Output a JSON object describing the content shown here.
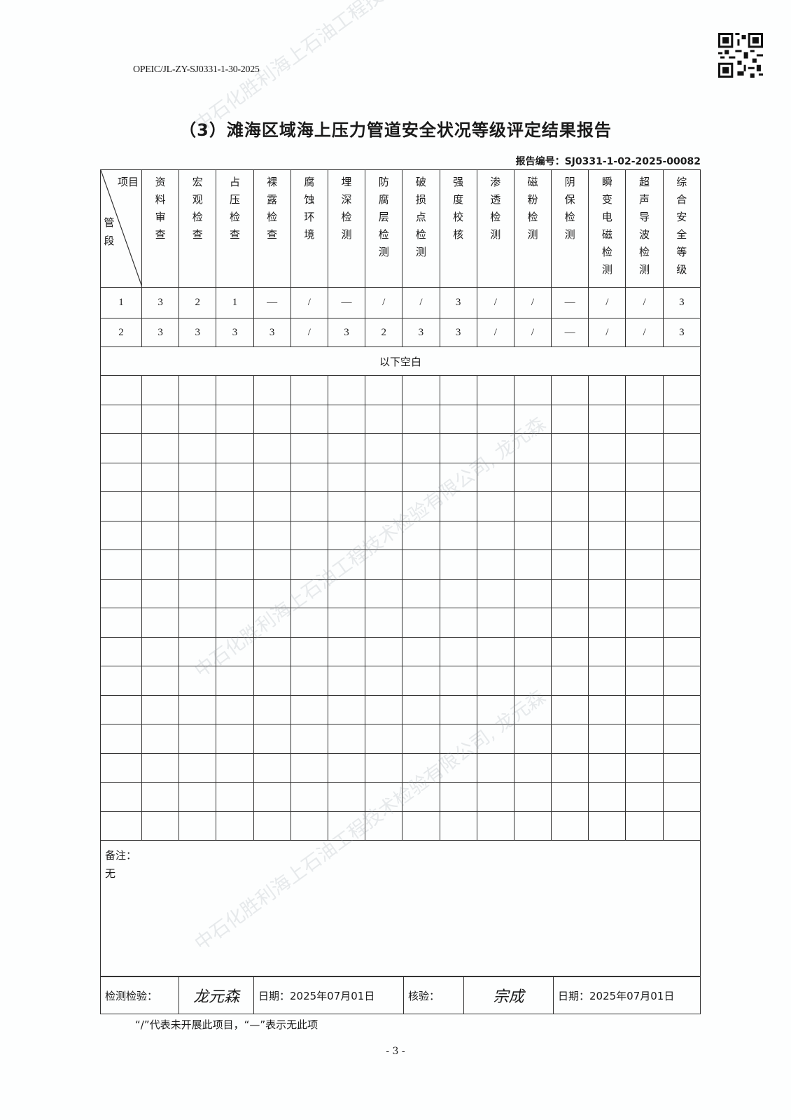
{
  "doc_code": "OPEIC/JL-ZY-SJ0331-1-30-2025",
  "title": "（3）滩海区域海上压力管道安全状况等级评定结果报告",
  "report_no": "报告编号：SJ0331-1-02-2025-00082",
  "watermark": "中石化胜利海上石油工程技术检验有限公司, 龙元森",
  "table": {
    "corner_top": "项目",
    "corner_left": "管段",
    "headers": [
      "资料审查",
      "宏观检查",
      "占压检查",
      "裸露检查",
      "腐蚀环境",
      "埋深检测",
      "防腐层检测",
      "破损点检测",
      "强度校核",
      "渗透检测",
      "磁粉检测",
      "阴保检测",
      "瞬变电磁检测",
      "超声导波检测",
      "综合安全等级"
    ],
    "rows": [
      {
        "segment": "1",
        "values": [
          "3",
          "2",
          "1",
          "—",
          "/",
          "—",
          "/",
          "/",
          "3",
          "/",
          "/",
          "—",
          "/",
          "/",
          "3"
        ]
      },
      {
        "segment": "2",
        "values": [
          "3",
          "3",
          "3",
          "3",
          "/",
          "3",
          "2",
          "3",
          "3",
          "/",
          "/",
          "—",
          "/",
          "/",
          "3"
        ]
      }
    ],
    "blank_note": "以下空白"
  },
  "remarks": {
    "label": "备注：",
    "text": "无"
  },
  "signoff": {
    "inspector_label": "检测检验：",
    "inspector_signature": "龙元森",
    "inspector_date": "日期：2025年07月01日",
    "reviewer_label": "核验：",
    "reviewer_signature": "宗成",
    "reviewer_date": "日期：2025年07月01日"
  },
  "footnote": "“/”代表未开展此项目，“—”表示无此项",
  "page_number": "- 3 -"
}
